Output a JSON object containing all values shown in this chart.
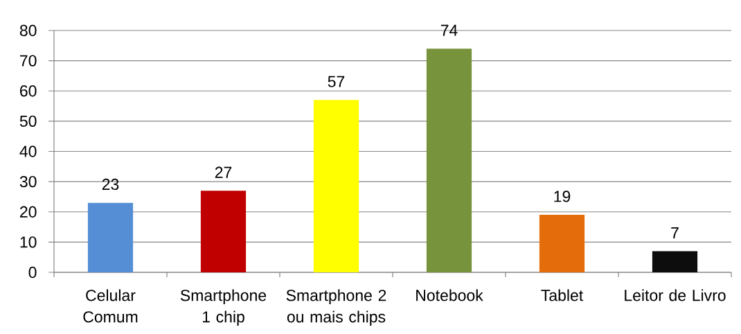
{
  "chart_data": {
    "type": "bar",
    "categories": [
      "Celular Comum",
      "Smartphone 1 chip",
      "Smartphone 2 ou mais chips",
      "Notebook",
      "Tablet",
      "Leitor de Livro"
    ],
    "values": [
      23,
      27,
      57,
      74,
      19,
      7
    ],
    "colors": [
      "#558ed5",
      "#c00000",
      "#ffff00",
      "#77933c",
      "#e46c0a",
      "#0d0d0d"
    ],
    "ylim": [
      0,
      80
    ],
    "yticks": [
      0,
      10,
      20,
      30,
      40,
      50,
      60,
      70,
      80
    ],
    "grid": "y",
    "data_labels": true
  }
}
